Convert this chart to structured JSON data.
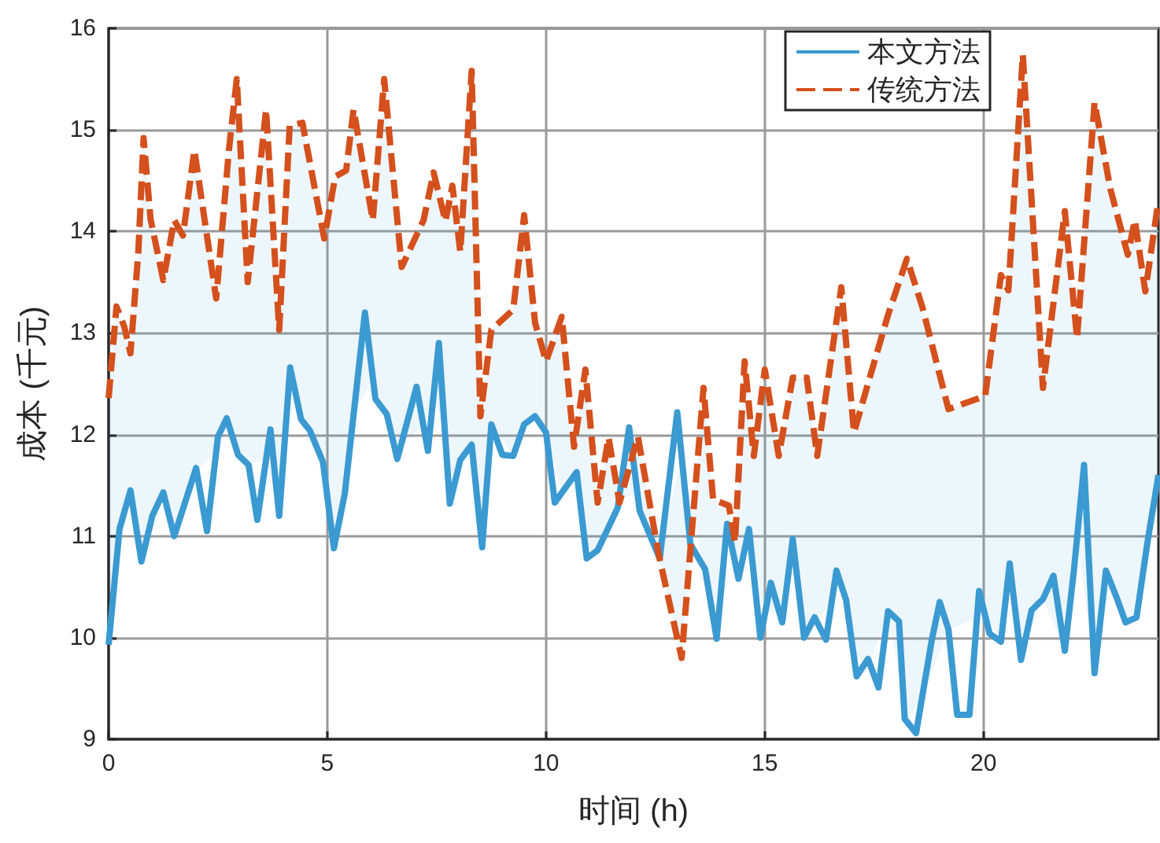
{
  "chart_data": {
    "type": "line",
    "xlabel": "时间 (h)",
    "ylabel": "成本 (千元)",
    "xlim": [
      0,
      24
    ],
    "xticks": [
      0,
      5,
      10,
      15,
      20
    ],
    "ylim": [
      9,
      16
    ],
    "yticks": [
      9,
      10,
      11,
      12,
      13,
      14,
      15,
      16
    ],
    "grid": true,
    "legend": "top right",
    "marker": "none",
    "series": [
      {
        "name": "本文方法",
        "color": "#3a9ad1",
        "line_style": "solid",
        "x": [
          0,
          0.25,
          0.5,
          0.75,
          1,
          1.25,
          1.5,
          2,
          2.25,
          2.5,
          2.7,
          2.96,
          3.2,
          3.4,
          3.7,
          3.9,
          4.15,
          4.4,
          4.6,
          4.9,
          5.15,
          5.4,
          5.86,
          6.1,
          6.36,
          6.6,
          7.04,
          7.3,
          7.55,
          7.8,
          8.04,
          8.3,
          8.54,
          8.75,
          9,
          9.25,
          9.5,
          9.75,
          10,
          10.2,
          10.7,
          10.93,
          11.18,
          11.64,
          11.9,
          12.14,
          12.6,
          13,
          13.3,
          13.64,
          13.9,
          14.14,
          14.4,
          14.64,
          14.9,
          15.14,
          15.4,
          15.64,
          15.9,
          16.14,
          16.4,
          16.64,
          16.86,
          17.1,
          17.36,
          17.6,
          17.82,
          18.07,
          18.2,
          18.46,
          18.82,
          19,
          19.2,
          19.4,
          19.68,
          19.9,
          20.14,
          20.4,
          20.6,
          20.86,
          21.1,
          21.36,
          21.6,
          21.86,
          22.07,
          22.3,
          22.54,
          22.8,
          23.04,
          23.25,
          23.5,
          23.75,
          24
        ],
        "values": [
          9.93,
          11.07,
          11.45,
          10.75,
          11.2,
          11.43,
          11,
          11.67,
          11.05,
          11.98,
          12.16,
          11.8,
          11.7,
          11.16,
          12.05,
          11.2,
          12.66,
          12.15,
          12.04,
          11.73,
          10.88,
          11.42,
          13.2,
          12.35,
          12.2,
          11.76,
          12.47,
          11.84,
          12.9,
          11.32,
          11.75,
          11.9,
          10.89,
          12.1,
          11.8,
          11.79,
          12.1,
          12.18,
          12.02,
          11.33,
          11.63,
          10.78,
          10.86,
          11.28,
          12.07,
          11.25,
          10.78,
          12.22,
          10.92,
          10.67,
          9.99,
          11.12,
          10.58,
          11.07,
          10,
          10.54,
          10.15,
          10.97,
          10,
          10.2,
          9.98,
          10.66,
          10.37,
          9.62,
          9.79,
          9.51,
          10.26,
          10.16,
          9.2,
          9.06,
          9.98,
          10.35,
          10.08,
          9.24,
          9.24,
          10.46,
          10.04,
          9.96,
          10.73,
          9.78,
          10.27,
          10.38,
          10.61,
          9.87,
          10.67,
          11.7,
          9.65,
          10.66,
          10.4,
          10.15,
          10.2,
          10.94,
          11.6
        ]
      },
      {
        "name": "传统方法",
        "color": "#d4501c",
        "line_style": "dashed",
        "lower": [
          9.93,
          10.75,
          11.24,
          11.45,
          10.95,
          10.84,
          11.13,
          11.43,
          11.0,
          11.27,
          11.62,
          11.83,
          12.09,
          11.84,
          11.71,
          11.75,
          11.2,
          12.6,
          12.13,
          11.63,
          10.94,
          11.54,
          12.19,
          12.56,
          12.23,
          11.92,
          12.08,
          12.39,
          11.95,
          11.43,
          11.75,
          11.9,
          11.06,
          12.1,
          11.79,
          12.1,
          12.18,
          12.02,
          11.43,
          11.59,
          10.89,
          10.86,
          11.09,
          11.4,
          11.39,
          10.81,
          11.79,
          10.7,
          10.2,
          11.04,
          10.75,
          10.87,
          10.62,
          10.23,
          10.27,
          10.97,
          10.05,
          10.15,
          10.52,
          9.81,
          9.74,
          10.26,
          9.17,
          9.42,
          10.08,
          10.22,
          9.96,
          10.61,
          9.86,
          10.38,
          9.87,
          10.98,
          9.65,
          10.55,
          10.16,
          10.19,
          10.79,
          11.6
        ],
        "upper": [
          12.36,
          13.26,
          13.06,
          12.8,
          13.8,
          14.92,
          14.12,
          13.52,
          14.11,
          13.96,
          14.8,
          13.34,
          14.8,
          15.5,
          13.5,
          15.2,
          13.03,
          15.04,
          15.07,
          13.93,
          14.54,
          14.6,
          15.2,
          14.11,
          15.5,
          13.65,
          14.11,
          14.58,
          14.1,
          14.45,
          13.8,
          15.58,
          12.18,
          13.03,
          13.23,
          14.16,
          13.1,
          12.72,
          13.16,
          11.88,
          12.64,
          11.33,
          11.97,
          11.33,
          11.98,
          10.83,
          9.8,
          12.46,
          11.36,
          11.3,
          10.94,
          12.72,
          11.79,
          12.64,
          11.79,
          12.56,
          12.56,
          11.79,
          13.45,
          12.02,
          12.56,
          13.18,
          13.73,
          13.26,
          12.25,
          12.38,
          13.57,
          13.42,
          15.74,
          12.46,
          14.2,
          12.95,
          15.27,
          14.42,
          13.77,
          14.11,
          13.41,
          14.3
        ],
        "x": [
          0,
          0.18,
          0.36,
          0.5,
          0.68,
          0.8,
          0.96,
          1.25,
          1.5,
          1.7,
          1.96,
          2.46,
          2.75,
          2.93,
          3.18,
          3.6,
          3.9,
          4.14,
          4.43,
          4.93,
          5.18,
          5.43,
          5.6,
          6.04,
          6.3,
          6.7,
          7.2,
          7.43,
          7.7,
          7.86,
          8.04,
          8.3,
          8.5,
          8.75,
          9.25,
          9.5,
          9.75,
          10,
          10.36,
          10.64,
          10.9,
          11.18,
          11.43,
          11.68,
          12.1,
          12.57,
          13.1,
          13.6,
          13.82,
          14.18,
          14.32,
          14.54,
          14.75,
          15,
          15.32,
          15.64,
          15.96,
          16.2,
          16.75,
          17.04,
          17.4,
          17.82,
          18.25,
          18.6,
          19.2,
          20.04,
          20.4,
          20.57,
          20.9,
          21.36,
          21.86,
          22.14,
          22.54,
          22.9,
          23.3,
          23.46,
          23.7,
          24
        ],
        "values": [
          12.36,
          13.26,
          13.06,
          12.8,
          13.8,
          14.92,
          14.12,
          13.52,
          14.11,
          13.96,
          14.8,
          13.34,
          14.8,
          15.5,
          13.5,
          15.2,
          13.03,
          15.04,
          15.07,
          13.93,
          14.54,
          14.6,
          15.2,
          14.11,
          15.5,
          13.65,
          14.11,
          14.58,
          14.1,
          14.45,
          13.8,
          15.58,
          12.18,
          13.03,
          13.23,
          14.16,
          13.1,
          12.72,
          13.16,
          11.88,
          12.64,
          11.33,
          11.97,
          11.33,
          11.98,
          10.83,
          9.8,
          12.46,
          11.36,
          11.3,
          10.94,
          12.72,
          11.79,
          12.64,
          11.79,
          12.56,
          12.56,
          11.79,
          13.45,
          12.02,
          12.56,
          13.18,
          13.73,
          13.26,
          12.25,
          12.38,
          13.57,
          13.42,
          15.74,
          12.46,
          14.2,
          12.95,
          15.27,
          14.42,
          13.77,
          14.11,
          13.41,
          14.3
        ]
      }
    ]
  }
}
